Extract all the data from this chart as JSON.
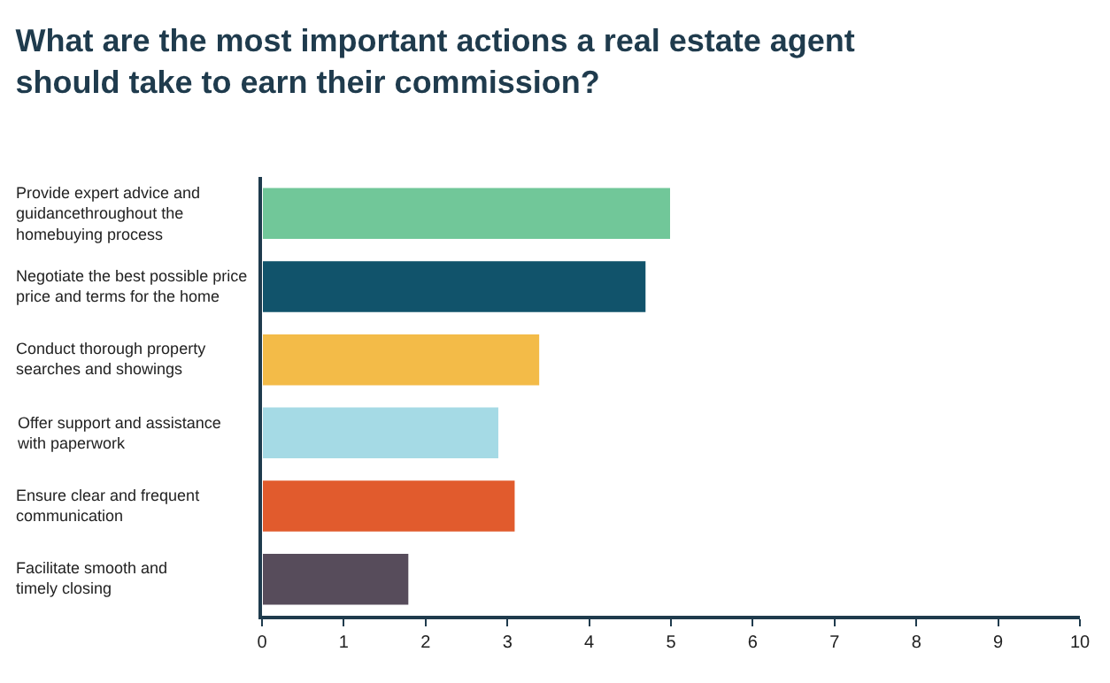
{
  "chart_data": {
    "type": "bar",
    "orientation": "horizontal",
    "title": "What are the most important actions a real estate agent\nshould take to earn their commission?",
    "categories": [
      "Provide expert advice and\nguidancethroughout the\nhomebuying process",
      "Negotiate the best possible price\nprice and terms for the home",
      "Conduct thorough property\nsearches and showings",
      "Offer support and assistance\nwith paperwork",
      "Ensure clear and frequent\ncommunication",
      "Facilitate smooth and\ntimely closing"
    ],
    "values": [
      5.0,
      4.7,
      3.4,
      2.9,
      3.1,
      1.8
    ],
    "colors": [
      "#71c799",
      "#11536b",
      "#f3bb48",
      "#a5dae5",
      "#e15b2d",
      "#574c5b"
    ],
    "xlim": [
      0,
      10
    ],
    "xticks": [
      0,
      1,
      2,
      3,
      4,
      5,
      6,
      7,
      8,
      9,
      10
    ],
    "legend": false
  }
}
